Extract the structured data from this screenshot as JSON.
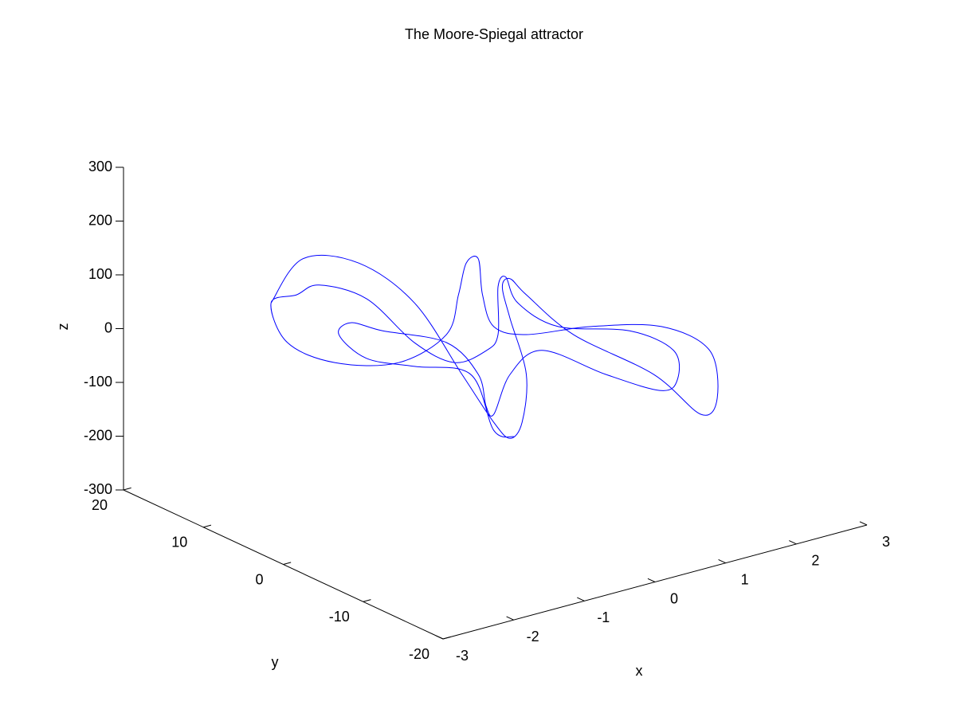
{
  "chart_data": {
    "type": "line3d",
    "title": "The Moore-Spiegal attractor",
    "xlabel": "x",
    "ylabel": "y",
    "zlabel": "z",
    "xlim": [
      -3,
      3
    ],
    "ylim": [
      -20,
      20
    ],
    "zlim": [
      -300,
      300
    ],
    "xticks": [
      -3,
      -2,
      -1,
      0,
      1,
      2,
      3
    ],
    "yticks": [
      -20,
      -10,
      0,
      10,
      20
    ],
    "zticks": [
      -300,
      -200,
      -100,
      0,
      100,
      200,
      300
    ],
    "series": [
      {
        "color": "#0000ff",
        "x": [
          -2.72,
          -2.27,
          -1.48,
          -0.69,
          -0.47,
          -0.02,
          0.21,
          0.38,
          0.44,
          0.21,
          0.1,
          0.21,
          0.44,
          1.11,
          1.79,
          2.46,
          2.69,
          2.58,
          1.9,
          1.34,
          0.44,
          -0.02,
          -0.18,
          -0.24,
          -0.41,
          -0.52,
          -0.69,
          -0.92,
          -1.82,
          -2.49,
          -2.72,
          -2.36,
          -2.04,
          -1.37,
          -0.69,
          -0.58,
          -0.13,
          0.04,
          0.04,
          0.15,
          0.32,
          0.89,
          1.45,
          2.07,
          2.13,
          1.9,
          1.11,
          0.66,
          0.21,
          -0.02,
          -0.13,
          -0.24,
          -0.69,
          -1.14,
          -1.59,
          -1.76,
          -1.37,
          -0.69,
          -0.35,
          -0.02,
          0.27
        ],
        "y": [
          4,
          4,
          4,
          4,
          0,
          0,
          0,
          0,
          0,
          0,
          0,
          0,
          0,
          0,
          -4,
          -4,
          -4,
          -4,
          -4,
          0,
          0,
          0,
          0,
          0,
          0,
          0,
          0,
          4,
          4,
          4,
          4,
          4,
          4,
          4,
          4,
          0,
          0,
          0,
          0,
          0,
          0,
          0,
          -4,
          -4,
          -4,
          -4,
          -4,
          0,
          0,
          0,
          0,
          0,
          0,
          4,
          4,
          4,
          4,
          4,
          0,
          0,
          0
        ],
        "z": [
          149,
          215,
          179,
          77,
          -36,
          -141,
          -179,
          -155,
          -68,
          44,
          107,
          118,
          80,
          -18,
          -88,
          -186,
          -164,
          -71,
          -3,
          -11,
          6,
          37,
          102,
          171,
          169,
          114,
          46,
          -26,
          6,
          67,
          149,
          151,
          158,
          109,
          3,
          -10,
          -4,
          20,
          109,
          123,
          69,
          5,
          5,
          -53,
          -108,
          -122,
          -64,
          -31,
          -60,
          -126,
          -107,
          -44,
          31,
          41,
          72,
          56,
          -2,
          -41,
          -40,
          -156,
          -178
        ]
      }
    ]
  }
}
